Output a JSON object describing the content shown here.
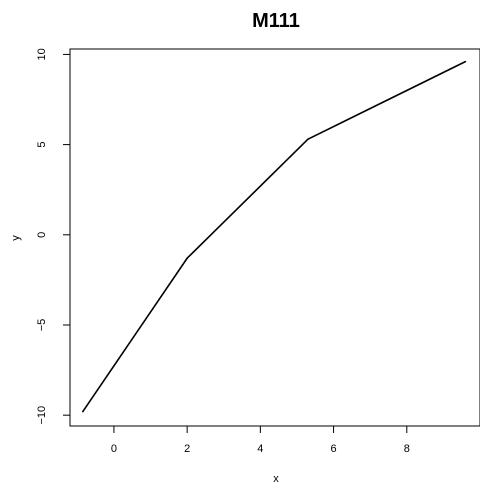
{
  "chart_data": {
    "type": "line",
    "title": "M111",
    "xlabel": "x",
    "ylabel": "y",
    "x_ticks": [
      0,
      2,
      4,
      6,
      8
    ],
    "x_tick_labels": [
      "0",
      "2",
      "4",
      "6",
      "8"
    ],
    "y_ticks": [
      -10,
      -5,
      0,
      5,
      10
    ],
    "y_tick_labels": [
      "−10",
      "−5",
      "0",
      "5",
      "10"
    ],
    "xlim": [
      -1.2,
      10
    ],
    "ylim": [
      -10.6,
      10.3
    ],
    "grid": false,
    "legend": "none",
    "series": [
      {
        "color": "#000000",
        "x": [
          -0.85,
          2.0,
          5.3,
          9.6
        ],
        "y": [
          -9.8,
          -1.3,
          5.3,
          9.6
        ]
      }
    ]
  }
}
